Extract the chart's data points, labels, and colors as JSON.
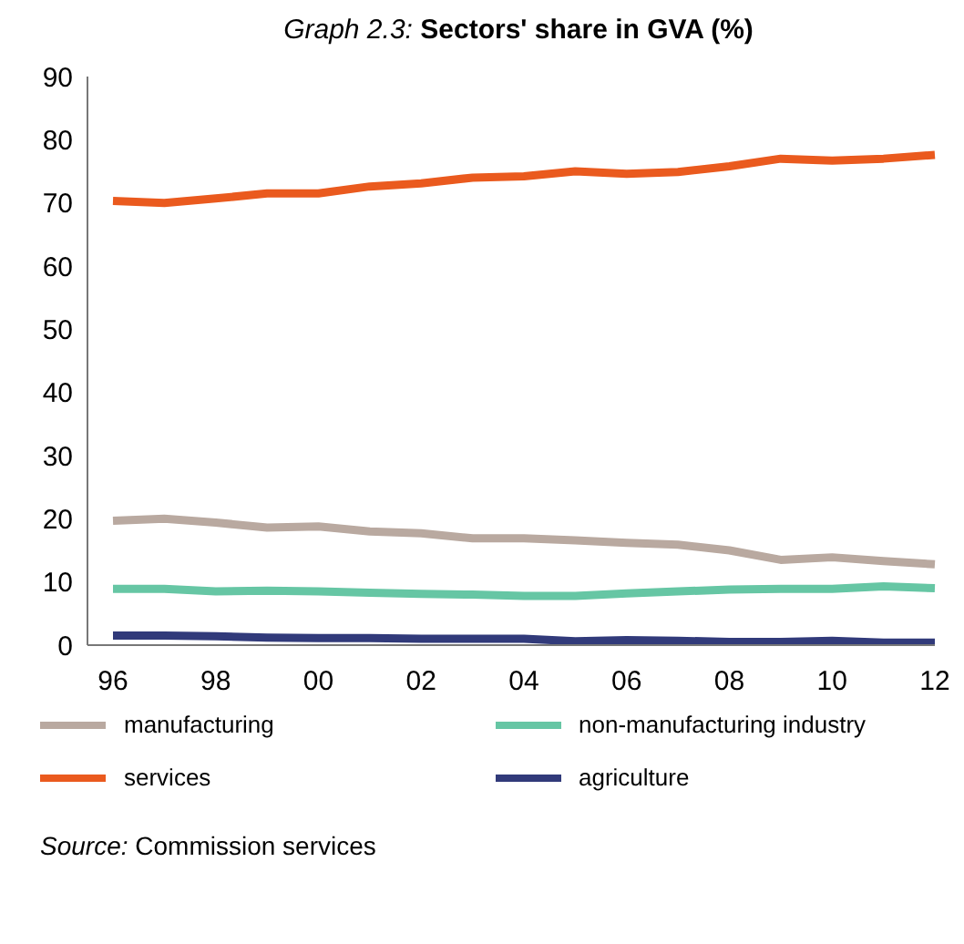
{
  "chart_data": {
    "type": "line",
    "title": "Graph 2.3: Sectors' share in GVA (%)",
    "categories": [
      "96",
      null,
      "98",
      null,
      "00",
      null,
      "02",
      null,
      "04",
      null,
      "06",
      null,
      "08",
      null,
      "10",
      null,
      "12"
    ],
    "series": [
      {
        "name": "manufacturing",
        "color": "#b9a9a0",
        "values": [
          19.7,
          20.0,
          19.4,
          18.6,
          18.8,
          18.0,
          17.7,
          16.9,
          16.9,
          16.6,
          16.2,
          15.9,
          15.0,
          13.5,
          13.9,
          13.3,
          12.8
        ]
      },
      {
        "name": "non-manufacturing industry",
        "color": "#66c6a4",
        "values": [
          8.9,
          8.9,
          8.5,
          8.6,
          8.5,
          8.3,
          8.1,
          8.0,
          7.8,
          7.8,
          8.2,
          8.5,
          8.8,
          8.9,
          8.9,
          9.3,
          9.0
        ]
      },
      {
        "name": "services",
        "color": "#ea5a1e",
        "values": [
          70.3,
          70.0,
          70.7,
          71.5,
          71.5,
          72.6,
          73.1,
          74.0,
          74.2,
          75.0,
          74.6,
          74.9,
          75.8,
          77.0,
          76.7,
          77.0,
          77.6
        ]
      },
      {
        "name": "agriculture",
        "color": "#313a7a",
        "values": [
          1.5,
          1.5,
          1.4,
          1.2,
          1.1,
          1.1,
          1.0,
          1.0,
          1.0,
          0.6,
          0.8,
          0.7,
          0.5,
          0.5,
          0.7,
          0.4,
          0.4
        ]
      }
    ],
    "ylim": [
      0,
      90
    ],
    "yticks": [
      0,
      10,
      20,
      30,
      40,
      50,
      60,
      70,
      80,
      90
    ],
    "grid": false,
    "legend": "bottom",
    "marker": "none",
    "line_style": "solid",
    "annotations": [
      "Source: Commission services"
    ]
  }
}
